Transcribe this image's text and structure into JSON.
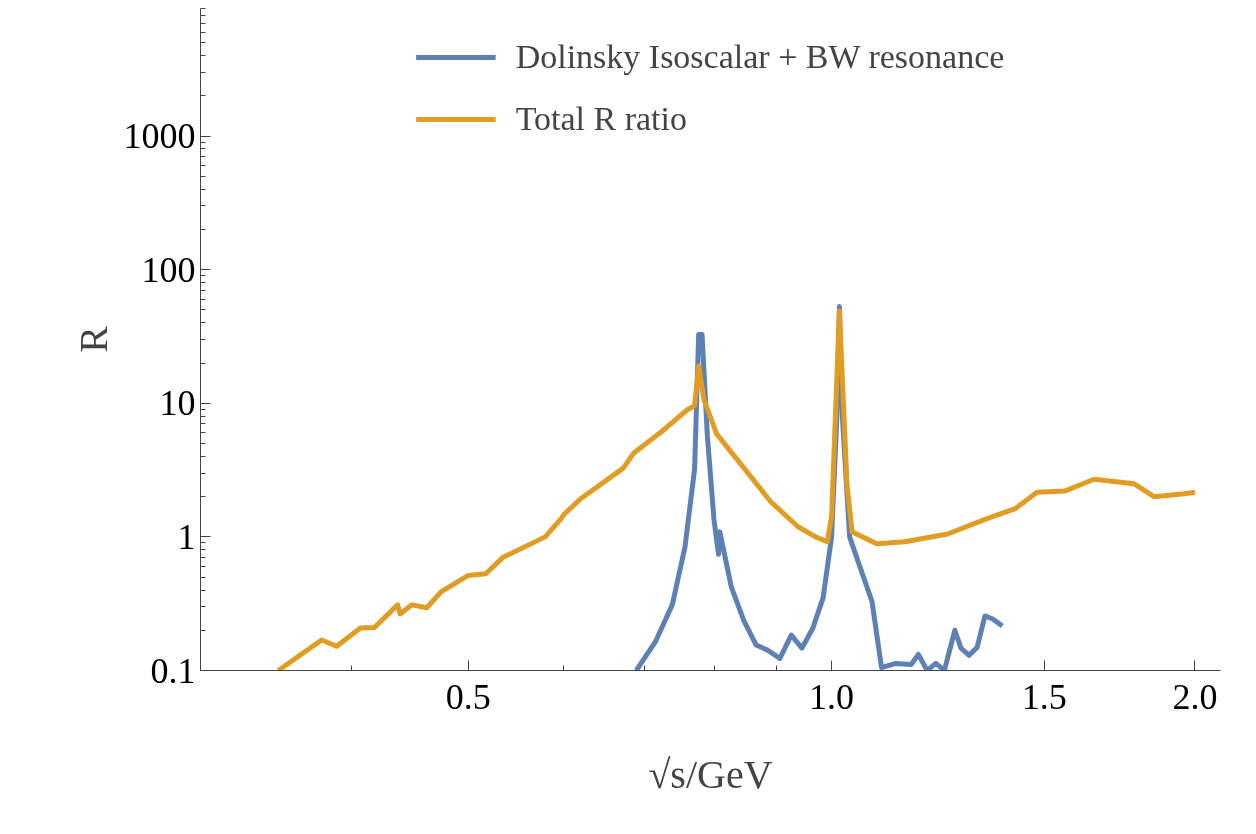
{
  "chart_data": {
    "type": "line",
    "xlabel": "√s/GeV",
    "ylabel": "R",
    "log": "xy",
    "grid": false,
    "legend": "top",
    "line_style": "solid",
    "marker": "none",
    "xlim": [
      0.3,
      2.1
    ],
    "ylim": [
      0.1,
      9000
    ],
    "xticks": [
      0.5,
      {
        "value": 1,
        "label": "1.0"
      },
      1.5,
      {
        "value": 2,
        "label": "2.0"
      }
    ],
    "yticks": [
      0.1,
      1,
      10,
      100,
      1000
    ],
    "series": [
      {
        "name": "Dolinsky Isoscalar + BW resonance",
        "color": "#5e81b5",
        "x": [
          0.689,
          0.715,
          0.738,
          0.756,
          0.77,
          0.776,
          0.781,
          0.789,
          0.799,
          0.806,
          0.808,
          0.826,
          0.846,
          0.866,
          0.885,
          0.906,
          0.926,
          0.945,
          0.965,
          0.984,
          1.0,
          1.01,
          1.015,
          1.021,
          1.035,
          1.054,
          1.08,
          1.1,
          1.13,
          1.164,
          1.18,
          1.2,
          1.22,
          1.24,
          1.265,
          1.28,
          1.3,
          1.32,
          1.34,
          1.36,
          1.385
        ],
        "values": [
          0.1,
          0.166,
          0.311,
          0.84,
          3.22,
          32.7,
          32.7,
          5.7,
          1.35,
          0.74,
          1.09,
          0.42,
          0.235,
          0.155,
          0.142,
          0.123,
          0.184,
          0.147,
          0.208,
          0.351,
          1.0,
          7.7,
          53,
          7.7,
          1.0,
          0.62,
          0.33,
          0.105,
          0.113,
          0.111,
          0.132,
          0.1,
          0.113,
          0.1,
          0.2,
          0.147,
          0.13,
          0.149,
          0.256,
          0.243,
          0.215
        ]
      },
      {
        "name": "Total R ratio",
        "color": "#e19c24",
        "x": [
          0.348,
          0.378,
          0.389,
          0.407,
          0.418,
          0.437,
          0.439,
          0.449,
          0.462,
          0.475,
          0.5,
          0.517,
          0.534,
          0.579,
          0.597,
          0.6,
          0.62,
          0.672,
          0.685,
          0.724,
          0.759,
          0.77,
          0.776,
          0.784,
          0.803,
          0.841,
          0.89,
          0.938,
          0.97,
          0.992,
          1.0,
          1.015,
          1.03,
          1.04,
          1.09,
          1.15,
          1.248,
          1.345,
          1.42,
          1.48,
          1.56,
          1.65,
          1.78,
          1.85,
          1.96,
          2.0
        ],
        "values": [
          0.1,
          0.169,
          0.152,
          0.208,
          0.21,
          0.31,
          0.265,
          0.31,
          0.295,
          0.39,
          0.515,
          0.53,
          0.7,
          1.0,
          1.37,
          1.47,
          1.94,
          3.27,
          4.2,
          6.2,
          8.9,
          9.6,
          19,
          10.6,
          5.9,
          3.5,
          1.84,
          1.19,
          1.0,
          0.92,
          1.42,
          49,
          2.4,
          1.09,
          0.89,
          0.92,
          1.05,
          1.37,
          1.63,
          2.16,
          2.2,
          2.7,
          2.5,
          2.0,
          2.1,
          2.16
        ]
      }
    ]
  }
}
